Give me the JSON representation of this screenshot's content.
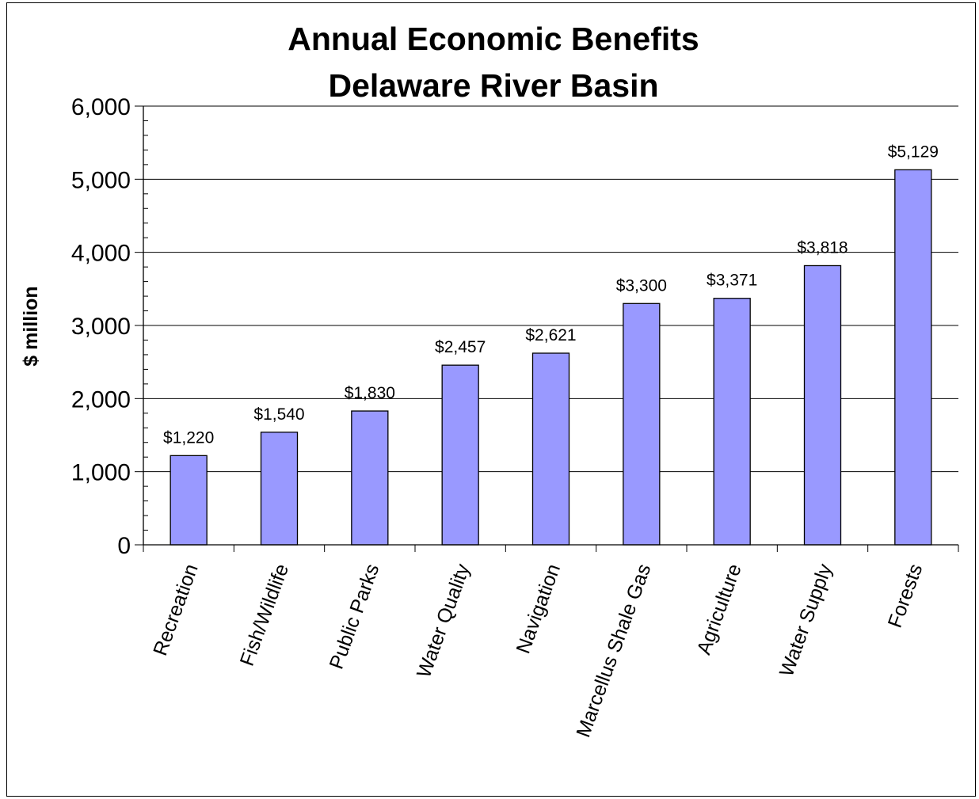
{
  "chart_data": {
    "type": "bar",
    "title": "Annual Economic Benefits",
    "subtitle": "Delaware River Basin",
    "ylabel": "$ million",
    "xlabel": "",
    "ylim": [
      0,
      6000
    ],
    "yticks": [
      0,
      1000,
      2000,
      3000,
      4000,
      5000,
      6000
    ],
    "ytick_labels": [
      "0",
      "1,000",
      "2,000",
      "3,000",
      "4,000",
      "5,000",
      "6,000"
    ],
    "grid": true,
    "categories": [
      "Recreation",
      "Fish/Wildlife",
      "Public Parks",
      "Water Quality",
      "Navigation",
      "Marcellus Shale Gas",
      "Agriculture",
      "Water Supply",
      "Forests"
    ],
    "values": [
      1220,
      1540,
      1830,
      2457,
      2621,
      3300,
      3371,
      3818,
      5129
    ],
    "data_labels": [
      "$1,220",
      "$1,540",
      "$1,830",
      "$2,457",
      "$2,621",
      "$3,300",
      "$3,371",
      "$3,818",
      "$5,129"
    ],
    "bar_color": "#9999ff"
  }
}
